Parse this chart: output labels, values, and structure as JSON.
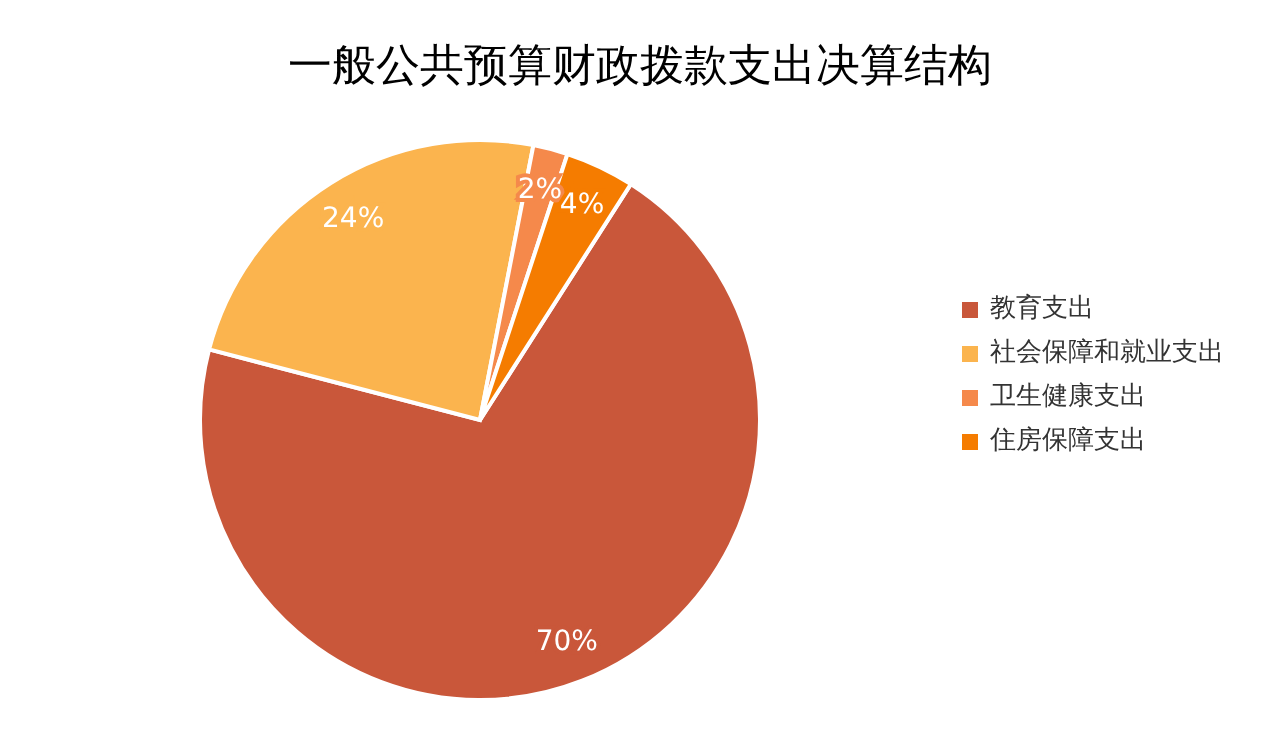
{
  "chart_data": {
    "type": "pie",
    "title": "一般公共预算财政拨款支出决算结构",
    "categories": [
      "教育支出",
      "社会保障和就业支出",
      "卫生健康支出",
      "住房保障支出"
    ],
    "values": [
      70,
      24,
      2,
      4
    ],
    "value_labels": [
      "70%",
      "24%",
      "2%",
      "4%"
    ],
    "colors": [
      "#c9573a",
      "#fbb44e",
      "#f5894b",
      "#f57c00"
    ],
    "legend": "right"
  }
}
